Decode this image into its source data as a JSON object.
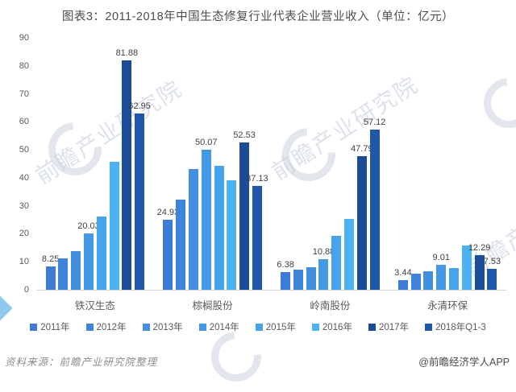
{
  "chart_data": {
    "type": "bar",
    "title": "图表3：2011-2018年中国生态修复行业代表企业营业收入（单位：亿元）",
    "unit": "亿元",
    "categories": [
      "铁汉生态",
      "棕榈股份",
      "岭南股份",
      "永清环保"
    ],
    "series": [
      {
        "name": "2011年",
        "color": "#3D7BD7",
        "labeled": true,
        "values": [
          8.25,
          24.93,
          6.38,
          3.44
        ]
      },
      {
        "name": "2012年",
        "color": "#4083DB",
        "labeled": false,
        "values": [
          11.3,
          32.3,
          7.3,
          5.8
        ]
      },
      {
        "name": "2013年",
        "color": "#448EE0",
        "labeled": false,
        "values": [
          13.8,
          43.0,
          8.1,
          6.7
        ]
      },
      {
        "name": "2014年",
        "color": "#4399E6",
        "labeled": true,
        "values": [
          20.03,
          50.07,
          10.88,
          9.01
        ]
      },
      {
        "name": "2015年",
        "color": "#45A4EC",
        "labeled": false,
        "values": [
          26.3,
          44.2,
          19.2,
          7.8
        ]
      },
      {
        "name": "2016年",
        "color": "#4DB2F2",
        "labeled": false,
        "values": [
          45.6,
          39.2,
          25.3,
          15.7
        ]
      },
      {
        "name": "2017年",
        "color": "#1B4C97",
        "labeled": true,
        "values": [
          81.88,
          52.53,
          47.79,
          12.29
        ]
      },
      {
        "name": "2018年Q1-3",
        "color": "#1F58A8",
        "labeled": true,
        "values": [
          62.95,
          37.13,
          57.12,
          7.53
        ]
      }
    ],
    "value_labels_shown_for": [
      "2011年",
      "2014年",
      "2017年",
      "2018年Q1-3"
    ],
    "ylim": [
      0,
      90
    ],
    "yticks": [
      0,
      10,
      20,
      30,
      40,
      50,
      60,
      70,
      80,
      90
    ],
    "grid": false,
    "legend_position": "bottom"
  },
  "footer": {
    "source": "资料来源：前瞻产业研究院整理",
    "credit": "@前瞻经济学人APP"
  },
  "watermark": {
    "text": "前瞻产业研究院"
  },
  "colors": {
    "title_text": "#4d4d4d",
    "axis_text": "#595959",
    "axis_line": "#d6d6d6",
    "value_label_text": "#3f3f3f"
  }
}
